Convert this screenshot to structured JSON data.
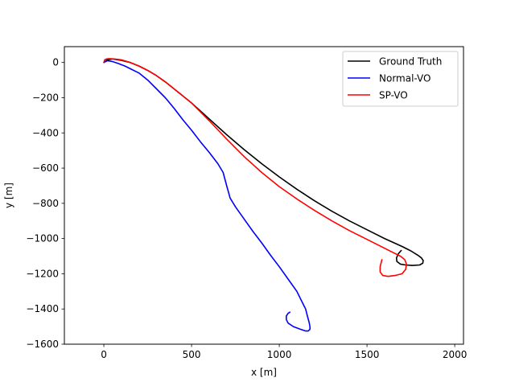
{
  "chart_data": {
    "type": "line",
    "title": "",
    "xlabel": "x [m]",
    "ylabel": "y [m]",
    "xlim": [
      -225,
      2050
    ],
    "ylim": [
      -1600,
      90
    ],
    "xticks": [
      0,
      500,
      1000,
      1500,
      2000
    ],
    "yticks": [
      0,
      -200,
      -400,
      -600,
      -800,
      -1000,
      -1200,
      -1400,
      -1600
    ],
    "xtick_labels": [
      "0",
      "500",
      "1000",
      "1500",
      "2000"
    ],
    "ytick_labels": [
      "0",
      "−200",
      "−400",
      "−600",
      "−800",
      "−1000",
      "−1200",
      "−1400",
      "−1600"
    ],
    "grid": false,
    "legend_position": "top-right",
    "series": [
      {
        "name": "Ground Truth",
        "color": "#000000",
        "x": [
          0,
          20,
          50,
          100,
          150,
          200,
          250,
          300,
          350,
          400,
          450,
          500,
          600,
          700,
          800,
          900,
          1000,
          1100,
          1200,
          1300,
          1400,
          1500,
          1600,
          1700,
          1750,
          1790,
          1810,
          1820,
          1818,
          1800,
          1760,
          1720,
          1690,
          1670,
          1668,
          1680,
          1695
        ],
        "y": [
          0,
          15,
          20,
          12,
          0,
          -20,
          -45,
          -75,
          -110,
          -150,
          -190,
          -230,
          -320,
          -410,
          -495,
          -575,
          -650,
          -720,
          -785,
          -845,
          -900,
          -950,
          -1000,
          -1045,
          -1070,
          -1095,
          -1110,
          -1125,
          -1140,
          -1150,
          -1153,
          -1150,
          -1145,
          -1130,
          -1110,
          -1085,
          -1068
        ]
      },
      {
        "name": "Normal-VO",
        "color": "#0000ff",
        "x": [
          0,
          20,
          50,
          80,
          120,
          150,
          200,
          250,
          300,
          350,
          400,
          450,
          500,
          550,
          600,
          650,
          680,
          700,
          720,
          750,
          800,
          850,
          900,
          950,
          1000,
          1050,
          1100,
          1130,
          1150,
          1160,
          1170,
          1175,
          1175,
          1165,
          1150,
          1120,
          1080,
          1050,
          1040,
          1040,
          1050,
          1060
        ],
        "y": [
          0,
          10,
          5,
          -5,
          -20,
          -35,
          -60,
          -100,
          -150,
          -200,
          -260,
          -325,
          -385,
          -450,
          -510,
          -575,
          -625,
          -700,
          -770,
          -820,
          -890,
          -960,
          -1025,
          -1095,
          -1160,
          -1230,
          -1300,
          -1360,
          -1400,
          -1440,
          -1475,
          -1500,
          -1515,
          -1525,
          -1525,
          -1515,
          -1500,
          -1480,
          -1460,
          -1440,
          -1425,
          -1418
        ]
      },
      {
        "name": "SP-VO",
        "color": "#ff0000",
        "x": [
          0,
          5,
          15,
          30,
          60,
          100,
          150,
          200,
          250,
          300,
          350,
          400,
          450,
          500,
          600,
          700,
          800,
          900,
          1000,
          1100,
          1200,
          1300,
          1400,
          1500,
          1600,
          1650,
          1690,
          1715,
          1725,
          1720,
          1700,
          1660,
          1620,
          1590,
          1575,
          1575,
          1585
        ],
        "y": [
          0,
          15,
          20,
          22,
          20,
          15,
          0,
          -20,
          -45,
          -75,
          -110,
          -150,
          -190,
          -230,
          -330,
          -435,
          -535,
          -625,
          -705,
          -775,
          -840,
          -900,
          -955,
          -1005,
          -1055,
          -1080,
          -1100,
          -1120,
          -1145,
          -1175,
          -1200,
          -1210,
          -1215,
          -1210,
          -1190,
          -1160,
          -1120
        ]
      }
    ]
  }
}
